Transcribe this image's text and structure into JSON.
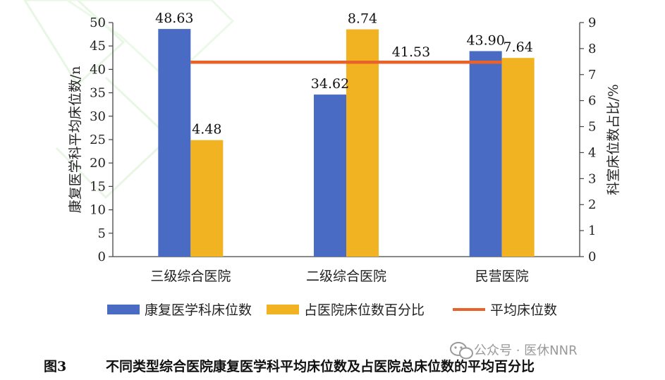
{
  "chart_data": {
    "type": "bar",
    "categories": [
      "三级综合医院",
      "二级综合医院",
      "民营医院"
    ],
    "series": [
      {
        "name": "康复医学科床位数",
        "axis": "left",
        "color": "#4a6bc4",
        "values": [
          48.63,
          34.62,
          43.9
        ],
        "labels": [
          "48.63",
          "34.62",
          "43.90"
        ]
      },
      {
        "name": "占医院床位数百分比",
        "axis": "right",
        "color": "#f2b322",
        "values": [
          4.48,
          8.74,
          7.64
        ],
        "labels": [
          "4.48",
          "8.74",
          "7.64"
        ]
      }
    ],
    "reference_line": {
      "name": "平均床位数",
      "value": 41.53,
      "label": "41.53",
      "color": "#e8632a"
    },
    "ylabel_left": "康复医学科平均床位数/n",
    "ylabel_right": "科室床位数占比/%",
    "ylim_left": [
      0,
      50
    ],
    "yticks_left": [
      "0",
      "5",
      "10",
      "15",
      "20",
      "25",
      "30",
      "35",
      "40",
      "45",
      "50"
    ],
    "ylim_right": [
      0,
      9
    ],
    "yticks_right": [
      "0",
      "1",
      "2",
      "3",
      "4",
      "5",
      "6",
      "7",
      "8",
      "9"
    ],
    "legend_position": "bottom",
    "grid": false
  },
  "caption": {
    "number": "图3",
    "text": "不同类型综合医院康复医学科平均床位数及占医院总床位数的平均百分比"
  },
  "watermark": {
    "icon": "wechat-icon",
    "text": "公众号 · 医休NNR"
  }
}
